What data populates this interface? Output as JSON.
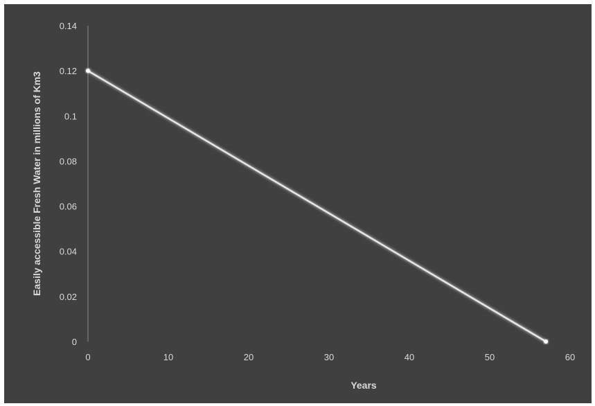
{
  "chart_data": {
    "type": "line",
    "title": "",
    "xlabel": "Years",
    "ylabel": "Easily accessible Fresh Water in millions of Km3",
    "xlim": [
      0,
      60
    ],
    "ylim": [
      0,
      0.14
    ],
    "x_ticks": [
      "0",
      "10",
      "20",
      "30",
      "40",
      "50",
      "60"
    ],
    "y_ticks": [
      "0",
      "0.02",
      "0.04",
      "0.06",
      "0.08",
      "0.1",
      "0.12",
      "0.14"
    ],
    "grid": false,
    "legend": "none",
    "series": [
      {
        "x": [
          0,
          57
        ],
        "y": [
          0.12,
          0
        ]
      }
    ],
    "colors": {
      "background": "#404040",
      "line": "#e6e6e6",
      "text": "#d9d9d9",
      "axis": "#8c8c8c"
    }
  }
}
